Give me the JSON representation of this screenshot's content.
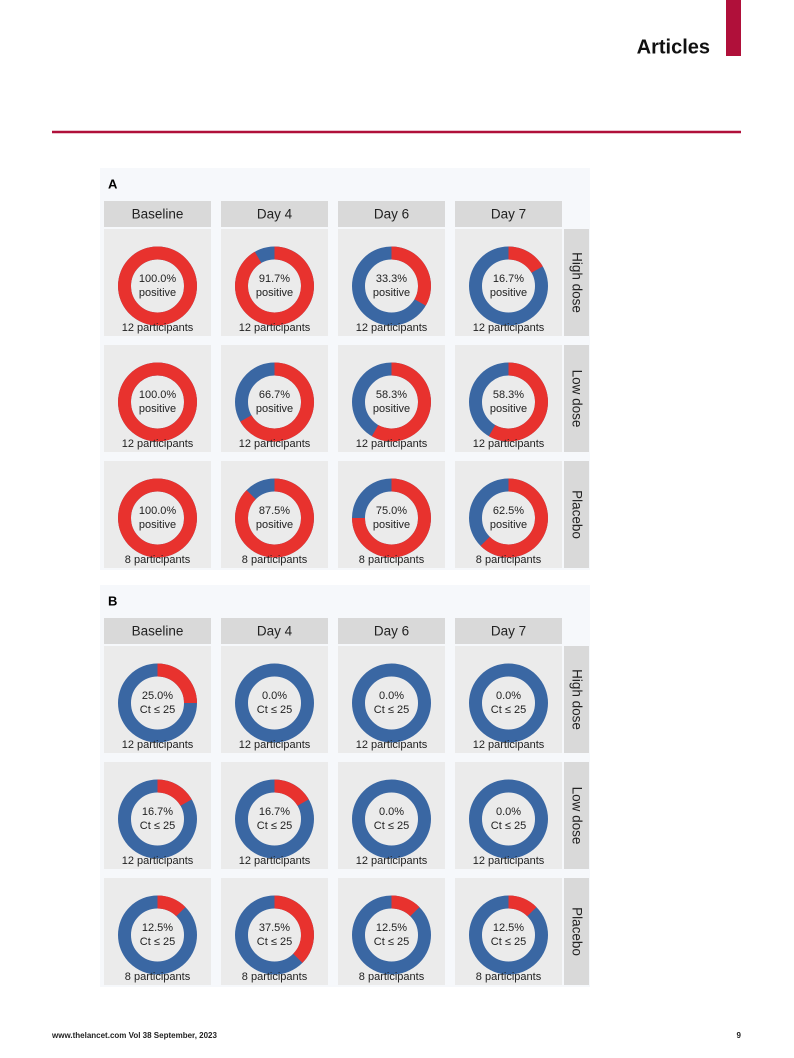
{
  "header": {
    "section": "Articles"
  },
  "figure": {
    "panels": [
      {
        "label": "A",
        "caption": "positive",
        "columns": [
          "Baseline",
          "Day 4",
          "Day 6",
          "Day 7"
        ],
        "rows": [
          {
            "name": "High dose",
            "participants": "12 participants",
            "cells": [
              {
                "value": 100,
                "value_label": "100.0%"
              },
              {
                "value": 91.7,
                "value_label": "91.7%"
              },
              {
                "value": 33.3,
                "value_label": "33.3%"
              },
              {
                "value": 16.7,
                "value_label": "16.7%"
              }
            ]
          },
          {
            "name": "Low dose",
            "participants": "12 participants",
            "cells": [
              {
                "value": 100,
                "value_label": "100.0%"
              },
              {
                "value": 66.7,
                "value_label": "66.7%"
              },
              {
                "value": 58.3,
                "value_label": "58.3%"
              },
              {
                "value": 58.3,
                "value_label": "58.3%"
              }
            ]
          },
          {
            "name": "Placebo",
            "participants": "8 participants",
            "cells": [
              {
                "value": 100,
                "value_label": "100.0%"
              },
              {
                "value": 87.5,
                "value_label": "87.5%"
              },
              {
                "value": 75,
                "value_label": "75.0%"
              },
              {
                "value": 62.5,
                "value_label": "62.5%"
              }
            ]
          }
        ]
      },
      {
        "label": "B",
        "caption": "Ct ≤ 25",
        "columns": [
          "Baseline",
          "Day 4",
          "Day 6",
          "Day 7"
        ],
        "rows": [
          {
            "name": "High dose",
            "participants": "12 participants",
            "cells": [
              {
                "value": 25,
                "value_label": "25.0%"
              },
              {
                "value": 0,
                "value_label": "0.0%"
              },
              {
                "value": 0,
                "value_label": "0.0%"
              },
              {
                "value": 0,
                "value_label": "0.0%"
              }
            ]
          },
          {
            "name": "Low dose",
            "participants": "12 participants",
            "cells": [
              {
                "value": 16.7,
                "value_label": "16.7%"
              },
              {
                "value": 16.7,
                "value_label": "16.7%"
              },
              {
                "value": 0,
                "value_label": "0.0%"
              },
              {
                "value": 0,
                "value_label": "0.0%"
              }
            ]
          },
          {
            "name": "Placebo",
            "participants": "8 participants",
            "cells": [
              {
                "value": 12.5,
                "value_label": "12.5%"
              },
              {
                "value": 37.5,
                "value_label": "37.5%"
              },
              {
                "value": 12.5,
                "value_label": "12.5%"
              },
              {
                "value": 12.5,
                "value_label": "12.5%"
              }
            ]
          }
        ]
      }
    ],
    "colors": {
      "share": "#e8322e",
      "rest": "#3a67a3"
    }
  },
  "footer": {
    "source": "www.thelancet.com Vol 38 September, 2023",
    "page": "9"
  }
}
